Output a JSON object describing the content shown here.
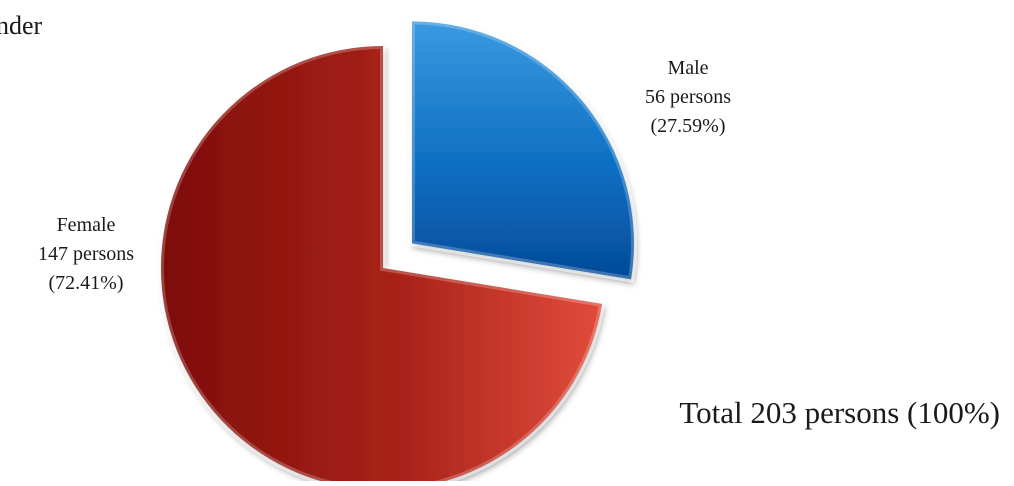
{
  "chart_data": {
    "type": "pie",
    "title": "nder",
    "slices": [
      {
        "name": "Male",
        "count_label": "56 persons",
        "percent_label": "(27.59%)",
        "value": 56,
        "percent": 27.59,
        "color": "#1f78c8",
        "exploded": true
      },
      {
        "name": "Female",
        "count_label": "147 persons",
        "percent_label": "(72.41%)",
        "value": 147,
        "percent": 72.41,
        "color": "#b8261c",
        "exploded": false
      }
    ],
    "total_label": "Total 203 persons (100%)",
    "total": 203
  }
}
